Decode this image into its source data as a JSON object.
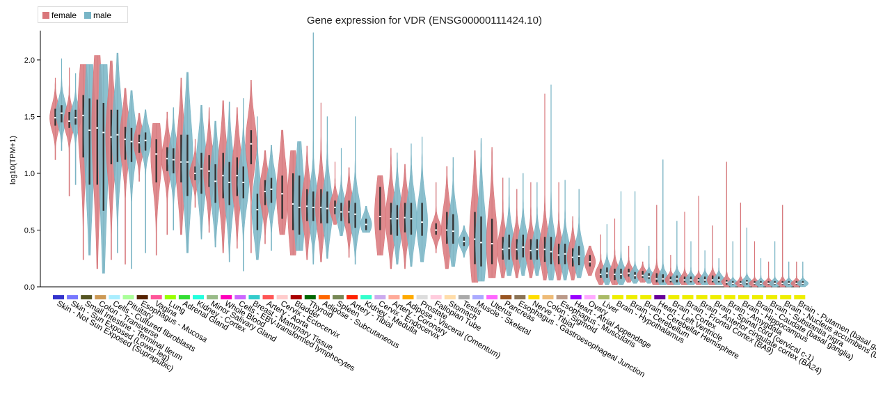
{
  "chart_data": {
    "type": "violin",
    "title": "Gene expression for VDR (ENSG00000111424.10)",
    "ylabel": "log10(TPM+1)",
    "ylim": [
      0,
      2.25
    ],
    "yticks": [
      0.0,
      0.5,
      1.0,
      1.5,
      2.0
    ],
    "yticklabels": [
      "0.0",
      "0.5",
      "1.0",
      "1.5",
      "2.0"
    ],
    "legend": [
      {
        "name": "female",
        "color": "#d9767a"
      },
      {
        "name": "male",
        "color": "#78b5c6"
      }
    ],
    "categories": [
      {
        "name": "Skin - Not Sun Exposed (Suprapubic)",
        "color": "#3333cc",
        "female": {
          "med": 1.49,
          "q1": 1.42,
          "q3": 1.57,
          "min": 1.12,
          "max": 1.84
        },
        "male": {
          "med": 1.53,
          "q1": 1.45,
          "q3": 1.6,
          "min": 1.2,
          "max": 2.01
        }
      },
      {
        "name": "Skin - Sun Exposed (Lower leg)",
        "color": "#7777ff",
        "female": {
          "med": 1.46,
          "q1": 1.4,
          "q3": 1.54,
          "min": 0.8,
          "max": 1.93
        },
        "male": {
          "med": 1.49,
          "q1": 1.43,
          "q3": 1.56,
          "min": 0.9,
          "max": 1.88
        }
      },
      {
        "name": "Small Intestine - Terminal Ileum",
        "color": "#555522",
        "female": {
          "med": 1.51,
          "q1": 1.14,
          "q3": 1.69,
          "min": 0.24,
          "max": 1.96
        },
        "male": {
          "med": 1.38,
          "q1": 0.9,
          "q3": 1.66,
          "min": 0.28,
          "max": 1.96
        }
      },
      {
        "name": "Colon - Transverse",
        "color": "#cc9955",
        "female": {
          "med": 1.4,
          "q1": 0.9,
          "q3": 1.65,
          "min": 0.16,
          "max": 2.04
        },
        "male": {
          "med": 1.36,
          "q1": 0.67,
          "q3": 1.62,
          "min": 0.12,
          "max": 1.96
        }
      },
      {
        "name": "Cells - Cultured fibroblasts",
        "color": "#aaeeff",
        "female": {
          "med": 1.32,
          "q1": 1.08,
          "q3": 1.56,
          "min": 0.24,
          "max": 1.99
        },
        "male": {
          "med": 1.34,
          "q1": 1.1,
          "q3": 1.56,
          "min": 0.3,
          "max": 2.06
        }
      },
      {
        "name": "Pituitary",
        "color": "#aaff99",
        "female": {
          "med": 1.3,
          "q1": 1.12,
          "q3": 1.41,
          "min": 0.2,
          "max": 1.75
        },
        "male": {
          "med": 1.28,
          "q1": 1.1,
          "q3": 1.4,
          "min": 0.16,
          "max": 1.73
        }
      },
      {
        "name": "Esophagus - Mucosa",
        "color": "#552200",
        "female": {
          "med": 1.27,
          "q1": 1.18,
          "q3": 1.34,
          "min": 0.93,
          "max": 1.53
        },
        "male": {
          "med": 1.29,
          "q1": 1.2,
          "q3": 1.36,
          "min": 0.3,
          "max": 1.56
        }
      },
      {
        "name": "Vagina",
        "color": "#ff5599",
        "female": {
          "med": 1.17,
          "q1": 0.92,
          "q3": 1.3,
          "min": 0.28,
          "max": 1.44
        },
        "male": null
      },
      {
        "name": "Lung",
        "color": "#99ff00",
        "female": {
          "med": 1.13,
          "q1": 1.02,
          "q3": 1.23,
          "min": 0.46,
          "max": 1.54
        },
        "male": {
          "med": 1.12,
          "q1": 1.0,
          "q3": 1.22,
          "min": 0.5,
          "max": 1.58
        }
      },
      {
        "name": "Adrenal Gland",
        "color": "#33dd33",
        "female": {
          "med": 1.1,
          "q1": 0.92,
          "q3": 1.34,
          "min": 0.46,
          "max": 1.84
        },
        "male": {
          "med": 1.1,
          "q1": 0.8,
          "q3": 1.34,
          "min": 0.3,
          "max": 1.89
        }
      },
      {
        "name": "Kidney - Cortex",
        "color": "#22ffdd",
        "female": {
          "med": 1.0,
          "q1": 0.94,
          "q3": 1.06,
          "min": 0.7,
          "max": 1.3
        },
        "male": {
          "med": 1.04,
          "q1": 0.82,
          "q3": 1.18,
          "min": 0.42,
          "max": 1.6
        }
      },
      {
        "name": "Minor Salivary Gland",
        "color": "#99bb88",
        "female": {
          "med": 1.02,
          "q1": 0.88,
          "q3": 1.16,
          "min": 0.48,
          "max": 1.58
        },
        "male": {
          "med": 0.93,
          "q1": 0.74,
          "q3": 1.08,
          "min": 0.35,
          "max": 1.46
        }
      },
      {
        "name": "Whole Blood",
        "color": "#ff00bb",
        "female": {
          "med": 0.98,
          "q1": 0.78,
          "q3": 1.18,
          "min": 0.3,
          "max": 1.64
        },
        "male": {
          "med": 0.92,
          "q1": 0.72,
          "q3": 1.1,
          "min": 0.22,
          "max": 1.63
        }
      },
      {
        "name": "Cells - EBV-transformed lymphocytes",
        "color": "#cc66ff",
        "female": {
          "med": 0.98,
          "q1": 0.8,
          "q3": 1.14,
          "min": 0.34,
          "max": 1.58
        },
        "male": {
          "med": 0.92,
          "q1": 0.78,
          "q3": 1.06,
          "min": 0.14,
          "max": 1.66
        }
      },
      {
        "name": "Breast - Mammary Tissue",
        "color": "#33cccc",
        "female": {
          "med": 1.26,
          "q1": 1.08,
          "q3": 1.38,
          "min": 0.3,
          "max": 1.82
        },
        "male": {
          "med": 0.68,
          "q1": 0.5,
          "q3": 0.82,
          "min": 0.24,
          "max": 1.5
        }
      },
      {
        "name": "Artery - Aorta",
        "color": "#ff5555",
        "female": {
          "med": 0.84,
          "q1": 0.72,
          "q3": 0.94,
          "min": 0.38,
          "max": 1.2
        },
        "male": {
          "med": 0.86,
          "q1": 0.74,
          "q3": 0.96,
          "min": 0.32,
          "max": 1.25
        }
      },
      {
        "name": "Cervix - Ectocervix",
        "color": "#ffcccc",
        "female": {
          "med": 0.82,
          "q1": 0.6,
          "q3": 0.98,
          "min": 0.46,
          "max": 1.38
        },
        "male": null
      },
      {
        "name": "Bladder",
        "color": "#aa0000",
        "female": {
          "med": 0.73,
          "q1": 0.5,
          "q3": 1.0,
          "min": 0.28,
          "max": 1.2
        },
        "male": {
          "med": 0.7,
          "q1": 0.46,
          "q3": 0.98,
          "min": 0.32,
          "max": 1.28
        }
      },
      {
        "name": "Thyroid",
        "color": "#006600",
        "female": {
          "med": 0.71,
          "q1": 0.58,
          "q3": 0.86,
          "min": 0.24,
          "max": 1.24
        },
        "male": {
          "med": 0.7,
          "q1": 0.58,
          "q3": 0.84,
          "min": 0.2,
          "max": 2.24
        }
      },
      {
        "name": "Adipose - Subcutaneous",
        "color": "#ff6600",
        "female": {
          "med": 0.7,
          "q1": 0.56,
          "q3": 0.86,
          "min": 0.22,
          "max": 1.62
        },
        "male": {
          "med": 0.69,
          "q1": 0.56,
          "q3": 0.84,
          "min": 0.25,
          "max": 1.5
        }
      },
      {
        "name": "Spleen",
        "color": "#778855",
        "female": {
          "med": 0.7,
          "q1": 0.64,
          "q3": 0.76,
          "min": 0.55,
          "max": 1.1
        },
        "male": {
          "med": 0.66,
          "q1": 0.58,
          "q3": 0.74,
          "min": 0.45,
          "max": 1.22
        }
      },
      {
        "name": "Artery - Tibial",
        "color": "#ff2200",
        "female": {
          "med": 0.66,
          "q1": 0.56,
          "q3": 0.76,
          "min": 0.26,
          "max": 1.05
        },
        "male": {
          "med": 0.64,
          "q1": 0.52,
          "q3": 0.74,
          "min": 0.2,
          "max": 1.5
        }
      },
      {
        "name": "Kidney - Medulla",
        "color": "#33ffcc",
        "female": null,
        "male": {
          "med": 0.55,
          "q1": 0.5,
          "q3": 0.6,
          "min": 0.48,
          "max": 0.71
        }
      },
      {
        "name": "Cervix - Endocervix",
        "color": "#ccaaee",
        "female": {
          "med": 0.62,
          "q1": 0.5,
          "q3": 0.88,
          "min": 0.28,
          "max": 0.98
        },
        "male": null
      },
      {
        "name": "Artery - Coronary",
        "color": "#ffaa99",
        "female": {
          "med": 0.6,
          "q1": 0.46,
          "q3": 0.74,
          "min": 0.16,
          "max": 1.22
        },
        "male": {
          "med": 0.6,
          "q1": 0.45,
          "q3": 0.72,
          "min": 0.2,
          "max": 1.18
        }
      },
      {
        "name": "Adipose - Visceral (Omentum)",
        "color": "#ffaa00",
        "female": {
          "med": 0.61,
          "q1": 0.48,
          "q3": 0.74,
          "min": 0.16,
          "max": 1.08
        },
        "male": {
          "med": 0.6,
          "q1": 0.46,
          "q3": 0.74,
          "min": 0.18,
          "max": 1.26
        }
      },
      {
        "name": "Prostate",
        "color": "#dddddd",
        "female": null,
        "male": {
          "med": 0.57,
          "q1": 0.45,
          "q3": 0.74,
          "min": 0.22,
          "max": 1.32
        }
      },
      {
        "name": "Fallopian Tube",
        "color": "#ffccdd",
        "female": {
          "med": 0.5,
          "q1": 0.46,
          "q3": 0.56,
          "min": 0.3,
          "max": 0.92
        },
        "male": null
      },
      {
        "name": "Stomach",
        "color": "#ffddaa",
        "female": {
          "med": 0.5,
          "q1": 0.38,
          "q3": 0.66,
          "min": 0.16,
          "max": 1.06
        },
        "male": {
          "med": 0.49,
          "q1": 0.38,
          "q3": 0.64,
          "min": 0.18,
          "max": 1.14
        }
      },
      {
        "name": "Testis",
        "color": "#aaaaaa",
        "female": null,
        "male": {
          "med": 0.4,
          "q1": 0.36,
          "q3": 0.44,
          "min": 0.26,
          "max": 0.54
        }
      },
      {
        "name": "Muscle - Skeletal",
        "color": "#aaaaff",
        "female": {
          "med": 0.42,
          "q1": 0.2,
          "q3": 0.66,
          "min": 0.04,
          "max": 1.2
        },
        "male": {
          "med": 0.39,
          "q1": 0.18,
          "q3": 0.62,
          "min": 0.05,
          "max": 1.31
        }
      },
      {
        "name": "Uterus",
        "color": "#ff66ff",
        "female": {
          "med": 0.38,
          "q1": 0.2,
          "q3": 0.6,
          "min": 0.08,
          "max": 1.23
        },
        "male": null
      },
      {
        "name": "Pancreas",
        "color": "#995522",
        "female": {
          "med": 0.33,
          "q1": 0.24,
          "q3": 0.44,
          "min": 0.08,
          "max": 0.96
        },
        "male": {
          "med": 0.34,
          "q1": 0.24,
          "q3": 0.46,
          "min": 0.1,
          "max": 0.96
        }
      },
      {
        "name": "Esophagus - Gastroesophageal Junction",
        "color": "#8b7355",
        "female": {
          "med": 0.33,
          "q1": 0.24,
          "q3": 0.42,
          "min": 0.08,
          "max": 0.86
        },
        "male": {
          "med": 0.35,
          "q1": 0.26,
          "q3": 0.46,
          "min": 0.1,
          "max": 1.0
        }
      },
      {
        "name": "Nerve - Tibial",
        "color": "#ffdd00",
        "female": {
          "med": 0.32,
          "q1": 0.24,
          "q3": 0.42,
          "min": 0.08,
          "max": 0.92
        },
        "male": {
          "med": 0.33,
          "q1": 0.24,
          "q3": 0.42,
          "min": 0.1,
          "max": 0.92
        }
      },
      {
        "name": "Colon - Sigmoid",
        "color": "#eebb77",
        "female": {
          "med": 0.33,
          "q1": 0.22,
          "q3": 0.44,
          "min": 0.06,
          "max": 1.7
        },
        "male": {
          "med": 0.31,
          "q1": 0.2,
          "q3": 0.44,
          "min": 0.06,
          "max": 1.78
        }
      },
      {
        "name": "Esophagus - Muscularis",
        "color": "#bb9988",
        "female": {
          "med": 0.28,
          "q1": 0.2,
          "q3": 0.38,
          "min": 0.06,
          "max": 0.92
        },
        "male": {
          "med": 0.29,
          "q1": 0.2,
          "q3": 0.38,
          "min": 0.06,
          "max": 0.94
        }
      },
      {
        "name": "Heart - Atrial Appendage",
        "color": "#9900ff",
        "female": {
          "med": 0.26,
          "q1": 0.18,
          "q3": 0.34,
          "min": 0.06,
          "max": 0.62
        },
        "male": {
          "med": 0.27,
          "q1": 0.19,
          "q3": 0.36,
          "min": 0.08,
          "max": 0.86
        }
      },
      {
        "name": "Ovary",
        "color": "#ffaaff",
        "female": {
          "med": 0.22,
          "q1": 0.18,
          "q3": 0.28,
          "min": 0.1,
          "max": 0.36
        },
        "male": null
      },
      {
        "name": "Liver",
        "color": "#aabb66",
        "female": {
          "med": 0.11,
          "q1": 0.08,
          "q3": 0.16,
          "min": 0.02,
          "max": 0.46
        },
        "male": {
          "med": 0.12,
          "q1": 0.08,
          "q3": 0.17,
          "min": 0.02,
          "max": 0.55
        }
      },
      {
        "name": "Brain - Hypothalamus",
        "color": "#eeee00",
        "female": {
          "med": 0.11,
          "q1": 0.06,
          "q3": 0.16,
          "min": 0.02,
          "max": 0.6
        },
        "male": {
          "med": 0.11,
          "q1": 0.07,
          "q3": 0.16,
          "min": 0.02,
          "max": 0.84
        }
      },
      {
        "name": "Brain - Cerebellum",
        "color": "#eeee00",
        "female": {
          "med": 0.12,
          "q1": 0.09,
          "q3": 0.16,
          "min": 0.04,
          "max": 0.36
        },
        "male": {
          "med": 0.1,
          "q1": 0.07,
          "q3": 0.13,
          "min": 0.03,
          "max": 0.84
        }
      },
      {
        "name": "Brain - Cerebellar Hemisphere",
        "color": "#eeee00",
        "female": {
          "med": 0.1,
          "q1": 0.08,
          "q3": 0.14,
          "min": 0.04,
          "max": 0.22
        },
        "male": {
          "med": 0.09,
          "q1": 0.07,
          "q3": 0.12,
          "min": 0.03,
          "max": 0.36
        }
      },
      {
        "name": "Heart - Left Ventricle",
        "color": "#660099",
        "female": {
          "med": 0.07,
          "q1": 0.04,
          "q3": 0.12,
          "min": 0.02,
          "max": 0.72
        },
        "male": {
          "med": 0.07,
          "q1": 0.04,
          "q3": 0.11,
          "min": 0.02,
          "max": 1.12
        }
      },
      {
        "name": "Brain - Cortex",
        "color": "#eeee00",
        "female": {
          "med": 0.06,
          "q1": 0.04,
          "q3": 0.09,
          "min": 0.02,
          "max": 0.28
        },
        "male": {
          "med": 0.07,
          "q1": 0.04,
          "q3": 0.1,
          "min": 0.02,
          "max": 0.58
        }
      },
      {
        "name": "Brain - Frontal Cortex (BA9)",
        "color": "#eeee00",
        "female": {
          "med": 0.06,
          "q1": 0.04,
          "q3": 0.09,
          "min": 0.02,
          "max": 0.66
        },
        "male": {
          "med": 0.06,
          "q1": 0.04,
          "q3": 0.09,
          "min": 0.02,
          "max": 0.4
        }
      },
      {
        "name": "Brain - Anterior cingulate cortex (BA24)",
        "color": "#eeee00",
        "female": {
          "med": 0.06,
          "q1": 0.04,
          "q3": 0.08,
          "min": 0.02,
          "max": 0.8
        },
        "male": {
          "med": 0.06,
          "q1": 0.04,
          "q3": 0.09,
          "min": 0.02,
          "max": 0.32
        }
      },
      {
        "name": "Brain - Spinal cord (cervical c-1)",
        "color": "#eeee00",
        "female": {
          "med": 0.06,
          "q1": 0.04,
          "q3": 0.1,
          "min": 0.02,
          "max": 0.54
        },
        "male": {
          "med": 0.06,
          "q1": 0.04,
          "q3": 0.09,
          "min": 0.02,
          "max": 0.25
        }
      },
      {
        "name": "Brain - Amygdala",
        "color": "#eeee00",
        "female": {
          "med": 0.04,
          "q1": 0.02,
          "q3": 0.06,
          "min": 0.0,
          "max": 1.1
        },
        "male": {
          "med": 0.03,
          "q1": 0.02,
          "q3": 0.05,
          "min": 0.0,
          "max": 0.4
        }
      },
      {
        "name": "Brain - Hippocampus",
        "color": "#eeee00",
        "female": {
          "med": 0.03,
          "q1": 0.02,
          "q3": 0.05,
          "min": 0.0,
          "max": 0.74
        },
        "male": {
          "med": 0.04,
          "q1": 0.02,
          "q3": 0.06,
          "min": 0.0,
          "max": 0.52
        }
      },
      {
        "name": "Brain - Caudate (basal ganglia)",
        "color": "#eeee00",
        "female": {
          "med": 0.03,
          "q1": 0.02,
          "q3": 0.05,
          "min": 0.0,
          "max": 0.4
        },
        "male": {
          "med": 0.03,
          "q1": 0.02,
          "q3": 0.05,
          "min": 0.0,
          "max": 0.25
        }
      },
      {
        "name": "Brain - Substantia nigra",
        "color": "#eeee00",
        "female": {
          "med": 0.03,
          "q1": 0.02,
          "q3": 0.05,
          "min": 0.0,
          "max": 0.22
        },
        "male": {
          "med": 0.03,
          "q1": 0.02,
          "q3": 0.05,
          "min": 0.0,
          "max": 0.4
        }
      },
      {
        "name": "Brain - Nucleus accumbens (basal ganglia)",
        "color": "#eeee00",
        "female": {
          "med": 0.03,
          "q1": 0.02,
          "q3": 0.05,
          "min": 0.0,
          "max": 0.72
        },
        "male": {
          "med": 0.03,
          "q1": 0.02,
          "q3": 0.05,
          "min": 0.0,
          "max": 0.22
        }
      },
      {
        "name": "Brain - Putamen (basal ganglia)",
        "color": "#eeee00",
        "female": {
          "med": 0.03,
          "q1": 0.02,
          "q3": 0.05,
          "min": 0.0,
          "max": 0.22
        },
        "male": {
          "med": 0.03,
          "q1": 0.02,
          "q3": 0.05,
          "min": 0.0,
          "max": 0.22
        }
      }
    ]
  }
}
